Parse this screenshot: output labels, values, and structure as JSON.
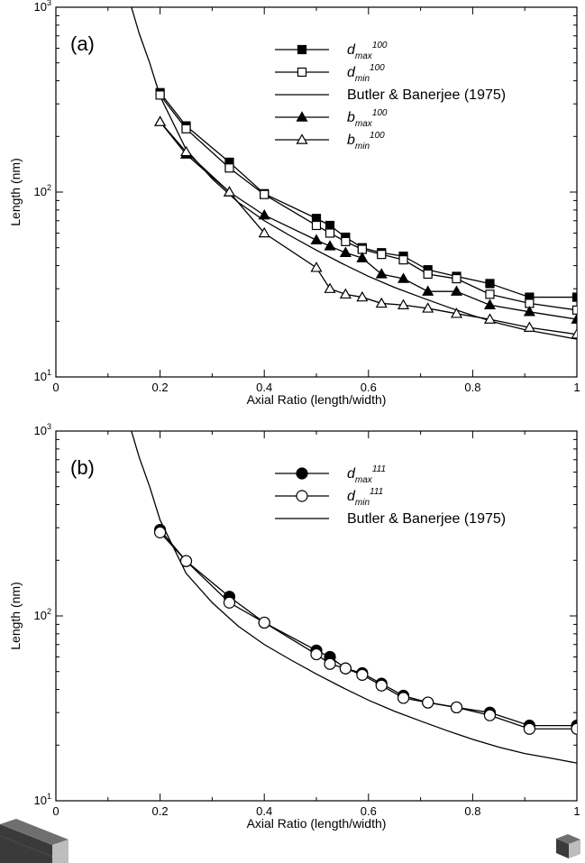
{
  "colors": {
    "ink": "#000000",
    "open_fill": "#ffffff",
    "prism_dark": "#3a3a3a",
    "prism_mid": "#6f6f6f",
    "prism_light": "#bdbdbd"
  },
  "icons": {
    "left_prism": "elongated-prism-icon",
    "right_prism": "cube-prism-icon"
  },
  "chart_data": [
    {
      "type": "line",
      "panel_label": "(a)",
      "xlabel": "Axial Ratio (length/width)",
      "ylabel": "Length (nm)",
      "xlim": [
        0,
        1
      ],
      "ylim": [
        10,
        1000
      ],
      "yscale": "log",
      "xticks": [
        0,
        0.2,
        0.4,
        0.6,
        0.8,
        1
      ],
      "xtick_labels": [
        "0",
        "0.2",
        "0.4",
        "0.6",
        "0.8",
        "1"
      ],
      "yticks": [
        10,
        100,
        1000
      ],
      "ytick_base": "10",
      "ytick_exponents": [
        "1",
        "2",
        "3"
      ],
      "grid": false,
      "legend_position": "top-right",
      "series": [
        {
          "name": "d",
          "name_sub": "max",
          "name_sup": "100",
          "marker": "square",
          "filled": true,
          "x": [
            0.2,
            0.25,
            0.333,
            0.4,
            0.5,
            0.526,
            0.556,
            0.588,
            0.625,
            0.667,
            0.714,
            0.769,
            0.833,
            0.909,
            1.0
          ],
          "y": [
            345,
            228,
            145,
            98,
            72,
            66,
            57,
            50,
            47,
            45,
            38,
            35,
            32,
            27,
            27
          ]
        },
        {
          "name": "d",
          "name_sub": "min",
          "name_sup": "100",
          "marker": "square",
          "filled": false,
          "x": [
            0.2,
            0.25,
            0.333,
            0.4,
            0.5,
            0.526,
            0.556,
            0.588,
            0.625,
            0.667,
            0.714,
            0.769,
            0.833,
            0.909,
            1.0
          ],
          "y": [
            335,
            220,
            135,
            97,
            66,
            60,
            54,
            49,
            46,
            43,
            36,
            34,
            28,
            25,
            23
          ]
        },
        {
          "name": "Butler & Banerjee (1975)",
          "marker": "none",
          "filled": false,
          "x": [
            0.145,
            0.16,
            0.18,
            0.2,
            0.25,
            0.3,
            0.35,
            0.4,
            0.45,
            0.5,
            0.55,
            0.6,
            0.65,
            0.7,
            0.75,
            0.8,
            0.85,
            0.9,
            0.95,
            1.0
          ],
          "y": [
            1000,
            720,
            500,
            330,
            170,
            118,
            88,
            70,
            58,
            48.5,
            41,
            35,
            30.5,
            27,
            24,
            21.5,
            19.5,
            18,
            17,
            16
          ]
        },
        {
          "name": "b",
          "name_sub": "max",
          "name_sup": "100",
          "marker": "triangle",
          "filled": true,
          "x": [
            0.2,
            0.25,
            0.333,
            0.4,
            0.5,
            0.526,
            0.556,
            0.588,
            0.625,
            0.667,
            0.714,
            0.769,
            0.833,
            0.909,
            1.0
          ],
          "y": [
            240,
            160,
            100,
            75,
            55,
            51,
            47,
            44,
            36,
            34,
            29,
            29,
            24.5,
            22.5,
            20.5
          ]
        },
        {
          "name": "b",
          "name_sub": "min",
          "name_sup": "100",
          "marker": "triangle",
          "filled": false,
          "x": [
            0.2,
            0.25,
            0.333,
            0.4,
            0.5,
            0.526,
            0.556,
            0.588,
            0.625,
            0.667,
            0.714,
            0.769,
            0.833,
            0.909,
            1.0
          ],
          "y": [
            240,
            165,
            100,
            60,
            39,
            30,
            28,
            27,
            25,
            24.5,
            23.5,
            22,
            20.5,
            18.5,
            17
          ]
        }
      ]
    },
    {
      "type": "line",
      "panel_label": "(b)",
      "xlabel": "Axial Ratio (length/width)",
      "ylabel": "Length (nm)",
      "xlim": [
        0,
        1
      ],
      "ylim": [
        10,
        1000
      ],
      "yscale": "log",
      "xticks": [
        0,
        0.2,
        0.4,
        0.6,
        0.8,
        1
      ],
      "xtick_labels": [
        "0",
        "0.2",
        "0.4",
        "0.6",
        "0.8",
        "1"
      ],
      "yticks": [
        10,
        100,
        1000
      ],
      "ytick_base": "10",
      "ytick_exponents": [
        "1",
        "2",
        "3"
      ],
      "grid": false,
      "legend_position": "top-right",
      "series": [
        {
          "name": "d",
          "name_sub": "max",
          "name_sup": "111",
          "marker": "circle",
          "filled": true,
          "x": [
            0.2,
            0.25,
            0.333,
            0.4,
            0.5,
            0.526,
            0.556,
            0.588,
            0.625,
            0.667,
            0.714,
            0.769,
            0.833,
            0.909,
            1.0
          ],
          "y": [
            292,
            198,
            127,
            92,
            65,
            60,
            52,
            49,
            43,
            37,
            34,
            32,
            30,
            25.5,
            25.5
          ]
        },
        {
          "name": "d",
          "name_sub": "min",
          "name_sup": "111",
          "marker": "circle",
          "filled": false,
          "x": [
            0.2,
            0.25,
            0.333,
            0.4,
            0.5,
            0.526,
            0.556,
            0.588,
            0.625,
            0.667,
            0.714,
            0.769,
            0.833,
            0.909,
            1.0
          ],
          "y": [
            283,
            198,
            118,
            92,
            62,
            55,
            52,
            48,
            42,
            36,
            34,
            32,
            29,
            24.5,
            24.5
          ]
        },
        {
          "name": "Butler & Banerjee (1975)",
          "marker": "none",
          "filled": false,
          "x": [
            0.145,
            0.16,
            0.18,
            0.2,
            0.25,
            0.3,
            0.35,
            0.4,
            0.45,
            0.5,
            0.55,
            0.6,
            0.65,
            0.7,
            0.75,
            0.8,
            0.85,
            0.9,
            0.95,
            1.0
          ],
          "y": [
            1000,
            720,
            500,
            330,
            170,
            118,
            88,
            70,
            58,
            48.5,
            41,
            35,
            30.5,
            27,
            24,
            21.5,
            19.5,
            18,
            17,
            16
          ]
        }
      ]
    }
  ]
}
